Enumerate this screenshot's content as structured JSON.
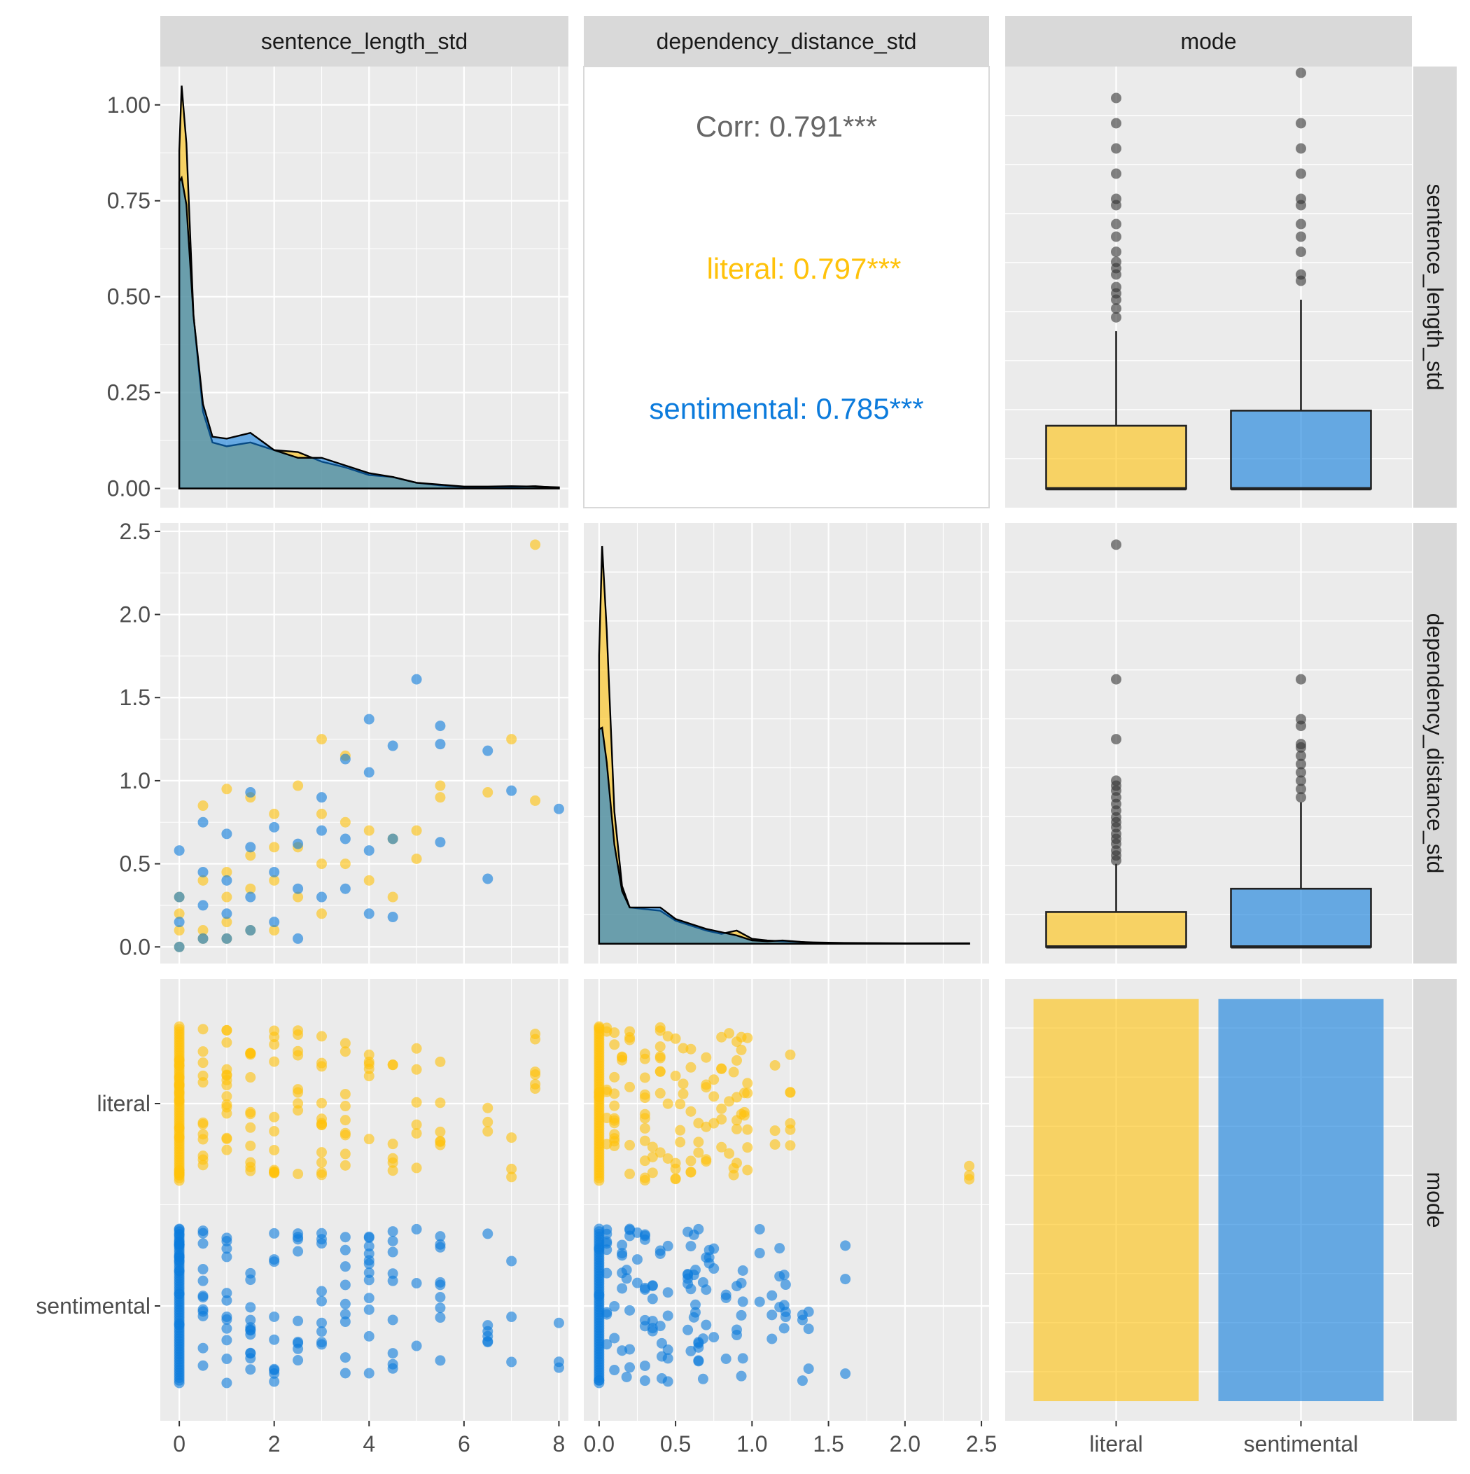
{
  "chart_data": {
    "type": "scatter",
    "subtype": "pairs-plot",
    "variables": [
      "sentence_length_std",
      "dependency_distance_std",
      "mode"
    ],
    "groups": [
      "literal",
      "sentimental"
    ],
    "colors": {
      "literal": "#FFC20A",
      "sentimental": "#0C7BDC",
      "overlap": "#5C8F90",
      "panel_bg": "#EBEBEB",
      "strip_bg": "#D9D9D9",
      "corr_text": "#666666"
    },
    "axes": {
      "sentence_length_std": {
        "range": [
          -0.4,
          8.2
        ],
        "ticks": [
          0,
          2,
          4,
          6,
          8
        ],
        "tick_labels": [
          "0",
          "2",
          "4",
          "6",
          "8"
        ]
      },
      "dependency_distance_std": {
        "range": [
          -0.1,
          2.55
        ],
        "ticks": [
          0.0,
          0.5,
          1.0,
          1.5,
          2.0,
          2.5
        ],
        "tick_labels": [
          "0.0",
          "0.5",
          "1.0",
          "1.5",
          "2.0",
          "2.5"
        ]
      },
      "density_y": {
        "range": [
          -0.05,
          1.1
        ],
        "ticks": [
          0,
          0.25,
          0.5,
          0.75,
          1.0
        ],
        "tick_labels": [
          "0.00",
          "0.25",
          "0.50",
          "0.75",
          "1.00"
        ]
      },
      "mode": {
        "tick_labels": [
          "literal",
          "sentimental"
        ]
      }
    },
    "correlation": {
      "overall": "Corr: 0.791***",
      "literal": "literal: 0.797***",
      "sentimental": "sentimental: 0.785***"
    },
    "density": {
      "sentence_length_std": {
        "literal": [
          [
            0,
            0.88
          ],
          [
            0.05,
            1.05
          ],
          [
            0.15,
            0.9
          ],
          [
            0.3,
            0.45
          ],
          [
            0.5,
            0.2
          ],
          [
            0.7,
            0.12
          ],
          [
            1.0,
            0.11
          ],
          [
            1.5,
            0.12
          ],
          [
            2.0,
            0.1
          ],
          [
            2.5,
            0.095
          ],
          [
            3.0,
            0.07
          ],
          [
            3.5,
            0.055
          ],
          [
            4.0,
            0.035
          ],
          [
            4.5,
            0.03
          ],
          [
            5.0,
            0.015
          ],
          [
            5.5,
            0.008
          ],
          [
            6.0,
            0.004
          ],
          [
            7.0,
            0.004
          ],
          [
            7.5,
            0.006
          ],
          [
            8.0,
            0.002
          ]
        ],
        "sentimental": [
          [
            0,
            0.8
          ],
          [
            0.05,
            0.81
          ],
          [
            0.15,
            0.74
          ],
          [
            0.3,
            0.45
          ],
          [
            0.5,
            0.22
          ],
          [
            0.7,
            0.135
          ],
          [
            1.0,
            0.13
          ],
          [
            1.5,
            0.145
          ],
          [
            2.0,
            0.1
          ],
          [
            2.5,
            0.08
          ],
          [
            3.0,
            0.08
          ],
          [
            3.5,
            0.06
          ],
          [
            4.0,
            0.04
          ],
          [
            4.5,
            0.03
          ],
          [
            5.0,
            0.015
          ],
          [
            5.5,
            0.01
          ],
          [
            6.0,
            0.005
          ],
          [
            6.5,
            0.005
          ],
          [
            7.0,
            0.006
          ],
          [
            7.5,
            0.005
          ],
          [
            8.0,
            0.003
          ]
        ]
      },
      "dependency_distance_std": {
        "literal": [
          [
            0,
            1.75
          ],
          [
            0.02,
            2.41
          ],
          [
            0.05,
            1.9
          ],
          [
            0.1,
            0.8
          ],
          [
            0.15,
            0.35
          ],
          [
            0.2,
            0.22
          ],
          [
            0.3,
            0.21
          ],
          [
            0.4,
            0.2
          ],
          [
            0.5,
            0.14
          ],
          [
            0.6,
            0.11
          ],
          [
            0.7,
            0.08
          ],
          [
            0.8,
            0.06
          ],
          [
            0.9,
            0.08
          ],
          [
            1.0,
            0.03
          ],
          [
            1.1,
            0.02
          ],
          [
            1.2,
            0.015
          ],
          [
            1.4,
            0.008
          ],
          [
            1.6,
            0.005
          ],
          [
            2.0,
            0.003
          ],
          [
            2.42,
            0.003
          ]
        ],
        "sentimental": [
          [
            0,
            1.3
          ],
          [
            0.02,
            1.31
          ],
          [
            0.05,
            1.1
          ],
          [
            0.1,
            0.6
          ],
          [
            0.15,
            0.32
          ],
          [
            0.2,
            0.22
          ],
          [
            0.3,
            0.22
          ],
          [
            0.4,
            0.22
          ],
          [
            0.5,
            0.15
          ],
          [
            0.6,
            0.12
          ],
          [
            0.7,
            0.09
          ],
          [
            0.8,
            0.07
          ],
          [
            0.9,
            0.05
          ],
          [
            1.0,
            0.02
          ],
          [
            1.1,
            0.015
          ],
          [
            1.2,
            0.02
          ],
          [
            1.4,
            0.005
          ],
          [
            1.6,
            0.003
          ],
          [
            2.0,
            0.002
          ],
          [
            2.42,
            0.002
          ]
        ],
        "y_range": [
          -0.12,
          2.55
        ]
      }
    },
    "boxplots": {
      "sentence_length_std": {
        "literal": {
          "q1": 0,
          "median": 0,
          "q3": 0.5,
          "whisker_low": 0,
          "whisker_high": 1.25,
          "outliers": [
            1.36,
            1.43,
            1.5,
            1.55,
            1.6,
            1.7,
            1.75,
            1.8,
            1.88,
            2.0,
            2.1,
            2.25,
            2.3,
            2.5,
            2.7,
            2.9,
            3.1
          ]
        },
        "sentimental": {
          "q1": 0,
          "median": 0,
          "q3": 0.62,
          "whisker_low": 0,
          "whisker_high": 1.5,
          "outliers": [
            1.65,
            1.7,
            1.88,
            2.0,
            2.1,
            2.25,
            2.3,
            2.5,
            2.7,
            2.9,
            3.3
          ]
        },
        "y_range": [
          -0.15,
          3.35
        ]
      },
      "dependency_distance_std": {
        "literal": {
          "q1": 0,
          "median": 0,
          "q3": 0.21,
          "whisker_low": 0,
          "whisker_high": 0.5,
          "outliers": [
            0.52,
            0.55,
            0.58,
            0.62,
            0.65,
            0.68,
            0.72,
            0.75,
            0.78,
            0.82,
            0.86,
            0.9,
            0.94,
            0.97,
            1.0,
            1.25,
            1.61,
            2.42
          ]
        },
        "sentimental": {
          "q1": 0,
          "median": 0,
          "q3": 0.35,
          "whisker_low": 0,
          "whisker_high": 0.87,
          "outliers": [
            0.9,
            0.95,
            1.0,
            1.05,
            1.1,
            1.15,
            1.2,
            1.22,
            1.33,
            1.37,
            1.61
          ]
        },
        "y_range": [
          -0.1,
          2.55
        ]
      }
    },
    "counts": {
      "literal": 1,
      "sentimental": 1
    },
    "scatter": {
      "literal": [
        [
          0,
          0
        ],
        [
          0,
          0.1
        ],
        [
          0,
          0.2
        ],
        [
          0,
          0.3
        ],
        [
          0.5,
          0.1
        ],
        [
          0.5,
          0.4
        ],
        [
          0.5,
          0.85
        ],
        [
          0.5,
          0.05
        ],
        [
          1,
          0.05
        ],
        [
          1,
          0.15
        ],
        [
          1,
          0.3
        ],
        [
          1,
          0.45
        ],
        [
          1,
          0.95
        ],
        [
          1.5,
          0.1
        ],
        [
          1.5,
          0.35
        ],
        [
          1.5,
          0.55
        ],
        [
          1.5,
          0.9
        ],
        [
          2,
          0.1
        ],
        [
          2,
          0.4
        ],
        [
          2,
          0.6
        ],
        [
          2,
          0.8
        ],
        [
          2.5,
          0.3
        ],
        [
          2.5,
          0.6
        ],
        [
          2.5,
          0.97
        ],
        [
          3,
          0.2
        ],
        [
          3,
          0.5
        ],
        [
          3,
          0.8
        ],
        [
          3,
          1.25
        ],
        [
          3.5,
          0.5
        ],
        [
          3.5,
          0.75
        ],
        [
          3.5,
          1.15
        ],
        [
          4,
          0.4
        ],
        [
          4,
          0.7
        ],
        [
          4.5,
          0.3
        ],
        [
          4.5,
          0.65
        ],
        [
          5,
          0.53
        ],
        [
          5,
          0.7
        ],
        [
          5.5,
          0.9
        ],
        [
          5.5,
          0.97
        ],
        [
          6.5,
          0.93
        ],
        [
          7,
          1.25
        ],
        [
          7.5,
          0.88
        ],
        [
          7.5,
          2.42
        ]
      ],
      "sentimental": [
        [
          0,
          0
        ],
        [
          0,
          0.15
        ],
        [
          0,
          0.3
        ],
        [
          0,
          0.58
        ],
        [
          0.5,
          0.05
        ],
        [
          0.5,
          0.25
        ],
        [
          0.5,
          0.45
        ],
        [
          0.5,
          0.75
        ],
        [
          1,
          0.05
        ],
        [
          1,
          0.2
        ],
        [
          1,
          0.4
        ],
        [
          1,
          0.68
        ],
        [
          1.5,
          0.1
        ],
        [
          1.5,
          0.3
        ],
        [
          1.5,
          0.6
        ],
        [
          1.5,
          0.93
        ],
        [
          2,
          0.15
        ],
        [
          2,
          0.45
        ],
        [
          2,
          0.72
        ],
        [
          2.5,
          0.05
        ],
        [
          2.5,
          0.35
        ],
        [
          2.5,
          0.62
        ],
        [
          3,
          0.3
        ],
        [
          3,
          0.7
        ],
        [
          3,
          0.9
        ],
        [
          3.5,
          0.35
        ],
        [
          3.5,
          0.65
        ],
        [
          3.5,
          1.13
        ],
        [
          4,
          0.2
        ],
        [
          4,
          0.58
        ],
        [
          4,
          1.05
        ],
        [
          4,
          1.37
        ],
        [
          4.5,
          0.18
        ],
        [
          4.5,
          0.65
        ],
        [
          4.5,
          1.21
        ],
        [
          5,
          1.61
        ],
        [
          5.5,
          0.63
        ],
        [
          5.5,
          1.22
        ],
        [
          5.5,
          1.33
        ],
        [
          6.5,
          0.41
        ],
        [
          6.5,
          1.18
        ],
        [
          7,
          0.94
        ],
        [
          8,
          0.83
        ]
      ]
    }
  }
}
